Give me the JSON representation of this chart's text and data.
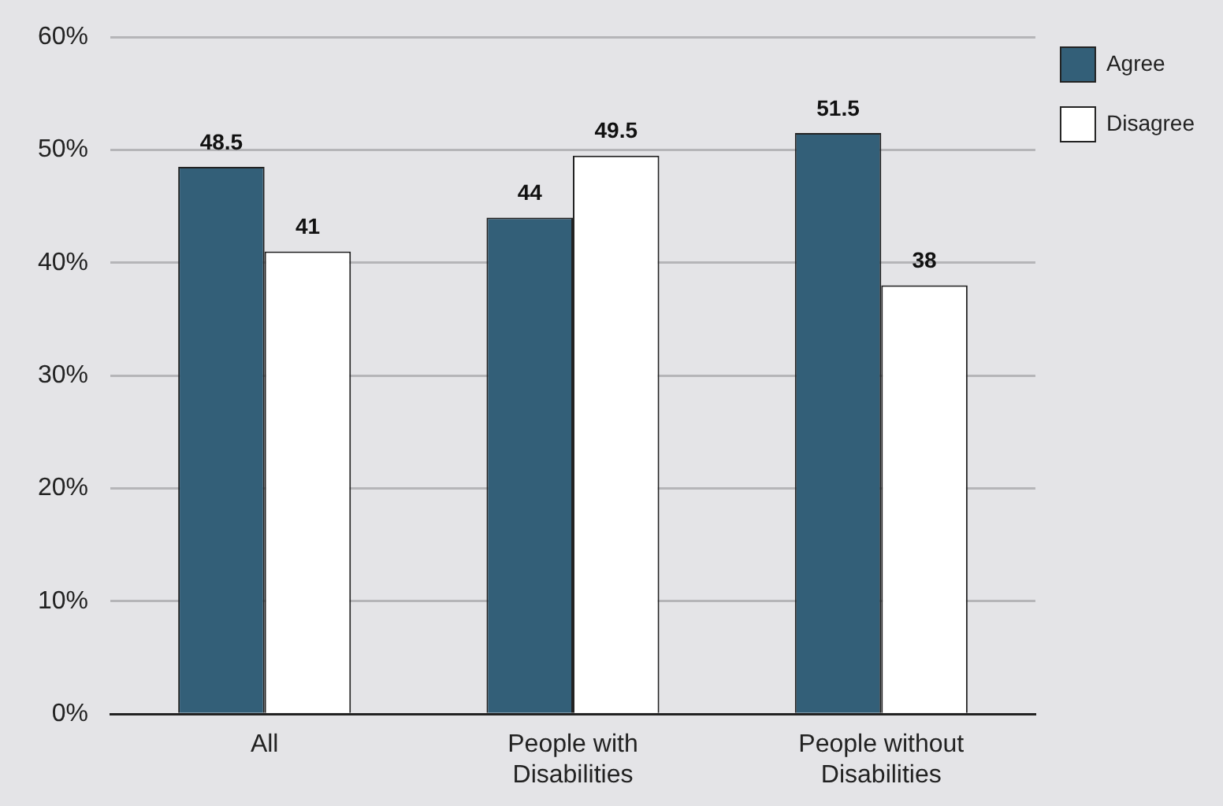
{
  "chart_data": {
    "type": "bar",
    "categories": [
      "All",
      "People with Disabilities",
      "People without Disabilities"
    ],
    "series": [
      {
        "name": "Agree",
        "color": "#335f78",
        "values": [
          48.5,
          44,
          51.5
        ]
      },
      {
        "name": "Disagree",
        "color": "#ffffff",
        "values": [
          41,
          49.5,
          38
        ]
      }
    ],
    "ylim": [
      0,
      60
    ],
    "yticks": [
      {
        "value": 0,
        "label": "0%"
      },
      {
        "value": 10,
        "label": "10%"
      },
      {
        "value": 20,
        "label": "20%"
      },
      {
        "value": 30,
        "label": "30%"
      },
      {
        "value": 40,
        "label": "40%"
      },
      {
        "value": 50,
        "label": "50%"
      },
      {
        "value": 60,
        "label": "60%"
      }
    ],
    "grid": "y",
    "legend": "top right",
    "data_labels": true
  }
}
